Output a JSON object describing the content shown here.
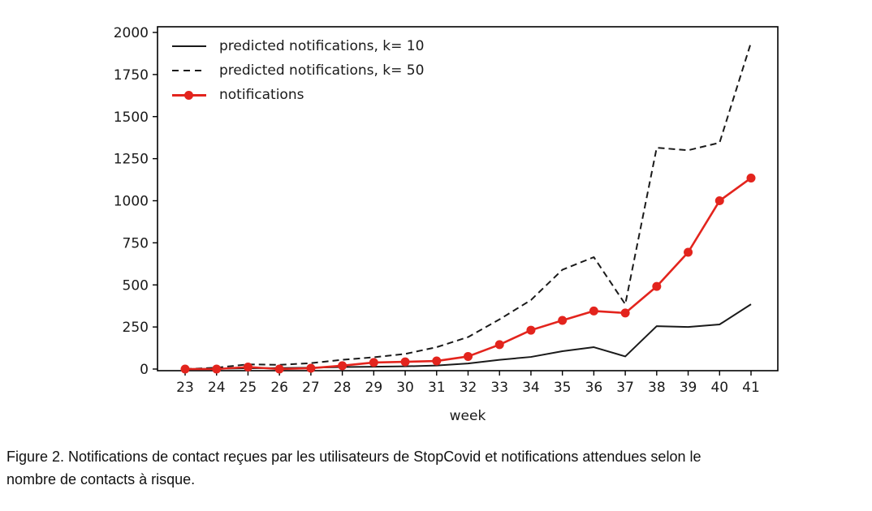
{
  "chart_data": {
    "type": "line",
    "x": [
      23,
      24,
      25,
      26,
      27,
      28,
      29,
      30,
      31,
      32,
      33,
      34,
      35,
      36,
      37,
      38,
      39,
      40,
      41
    ],
    "xlabel": "week",
    "ylabel": "",
    "ylim": [
      0,
      2000
    ],
    "yticks": [
      0,
      250,
      500,
      750,
      1000,
      1250,
      1500,
      1750,
      2000
    ],
    "grid": false,
    "legend_position": "upper left",
    "axis_color": "#000000",
    "series": [
      {
        "name": "predicted notifications, k= 10",
        "color": "#1a1a1a",
        "dash": "solid",
        "marker": "none",
        "values": [
          0,
          2,
          5,
          6,
          8,
          12,
          14,
          16,
          21,
          33,
          55,
          72,
          106,
          130,
          75,
          255,
          250,
          265,
          385
        ]
      },
      {
        "name": "predicted notifications, k= 50",
        "color": "#1a1a1a",
        "dash": "dashed",
        "marker": "none",
        "values": [
          0,
          8,
          28,
          25,
          35,
          55,
          70,
          90,
          130,
          190,
          295,
          410,
          590,
          665,
          385,
          1315,
          1300,
          1345,
          1940
        ]
      },
      {
        "name": "notifications",
        "color": "#e3241d",
        "dash": "solid",
        "marker": "circle",
        "values": [
          0,
          0,
          12,
          0,
          5,
          20,
          39,
          43,
          48,
          75,
          145,
          231,
          289,
          345,
          333,
          491,
          694,
          1000,
          1135
        ]
      }
    ]
  },
  "caption": {
    "line1": "Figure 2. Notifications de contact reçues par les utilisateurs de StopCovid et notifications attendues selon le",
    "line2": "nombre de contacts à risque."
  }
}
